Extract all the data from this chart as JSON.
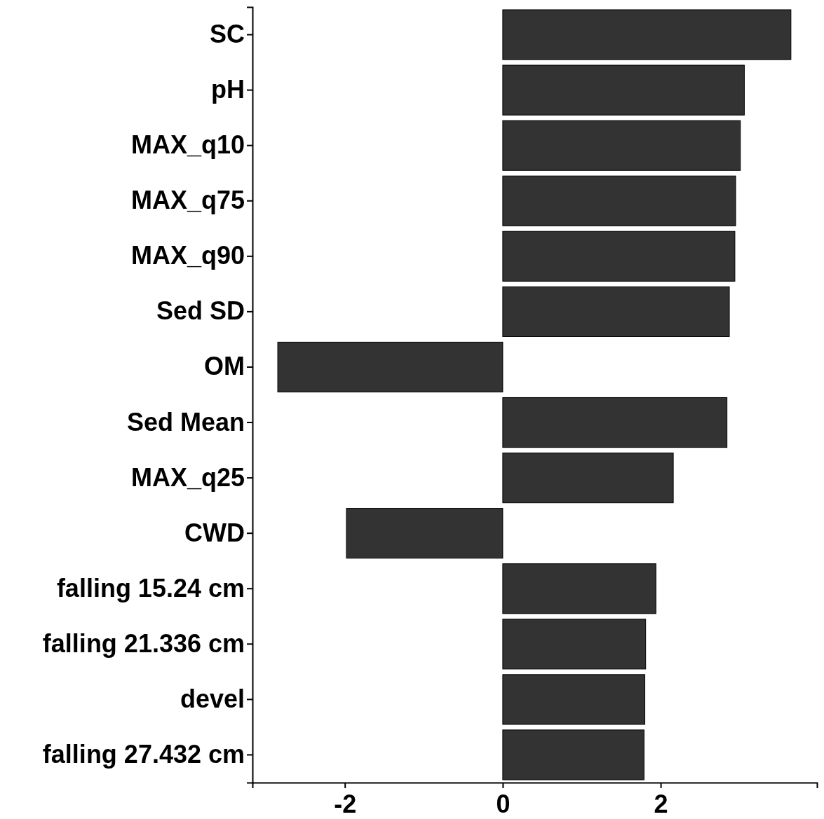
{
  "chart_data": {
    "type": "bar",
    "orientation": "horizontal",
    "categories": [
      "SC",
      "pH",
      "MAX_q10",
      "MAX_q75",
      "MAX_q90",
      "Sed SD",
      "OM",
      "Sed Mean",
      "MAX_q25",
      "CWD",
      "falling 15.24 cm",
      "falling 21.336 cm",
      "devel",
      "falling 27.432 cm"
    ],
    "values": [
      3.65,
      3.06,
      3.01,
      2.95,
      2.94,
      2.87,
      -2.85,
      2.84,
      2.16,
      -1.98,
      1.94,
      1.81,
      1.8,
      1.79
    ],
    "color": "#333333",
    "xlim": [
      -3.17,
      3.98
    ],
    "xticks": [
      -2,
      0,
      2
    ]
  }
}
